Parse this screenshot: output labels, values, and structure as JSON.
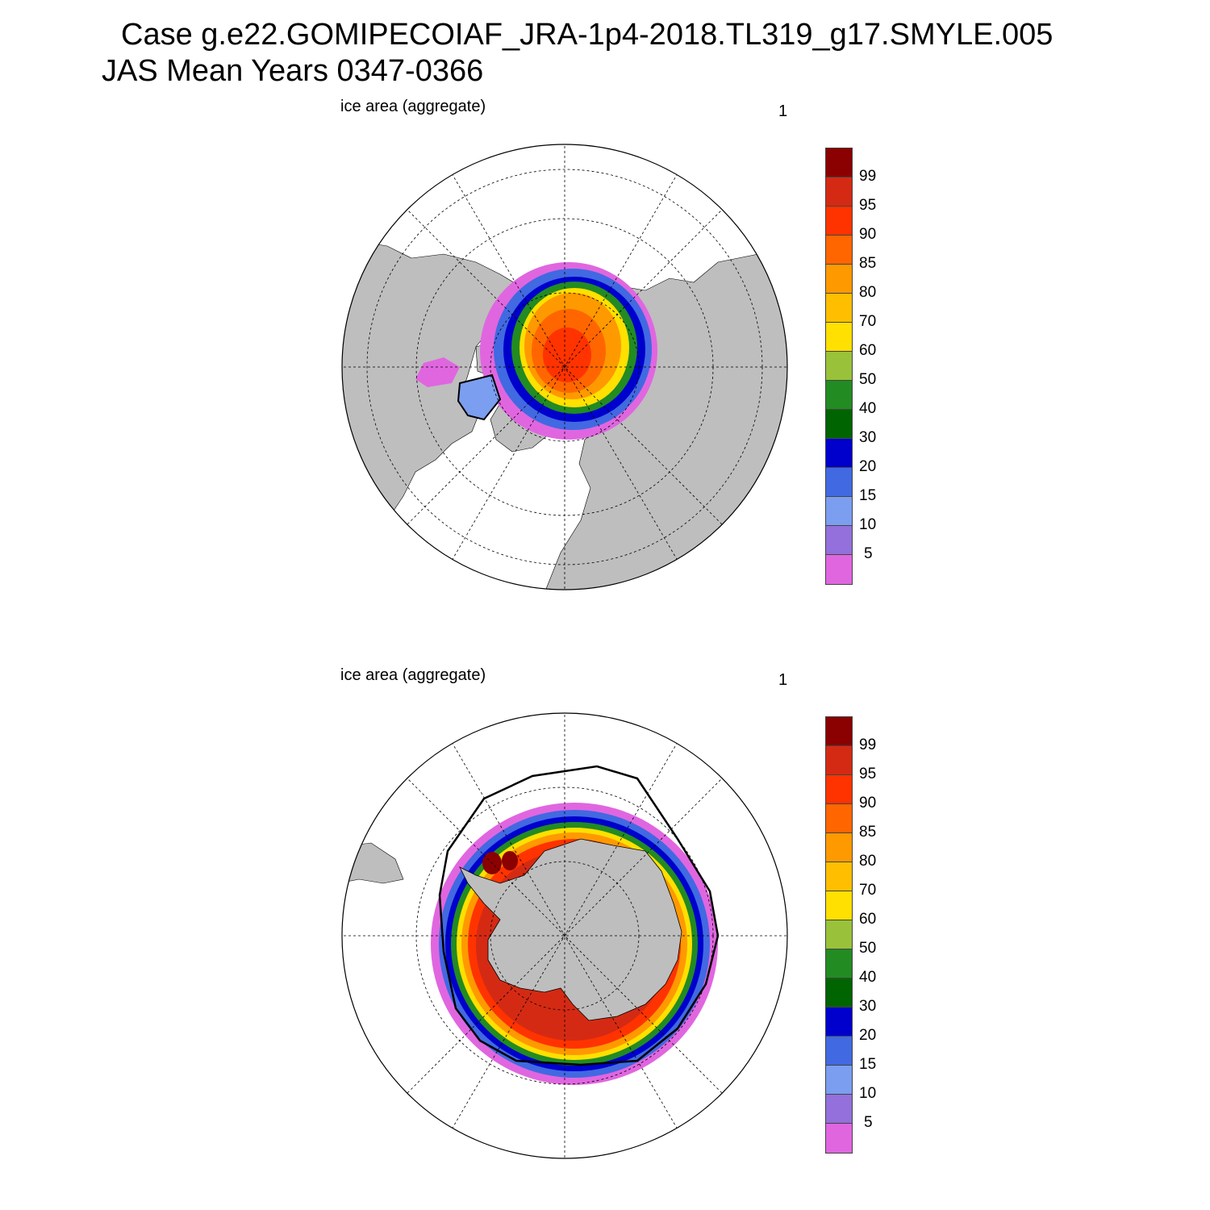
{
  "title_line1": "Case g.e22.GOMIPECOIAF_JRA-1p4-2018.TL319_g17.SMYLE.005",
  "title_line2": "JAS Mean   Years 0347-0366",
  "panels": [
    {
      "label": "ice area  (aggregate)",
      "number": "1",
      "hemisphere": "north"
    },
    {
      "label": "ice area  (aggregate)",
      "number": "1",
      "hemisphere": "south"
    }
  ],
  "colorbar": {
    "labels": [
      "99",
      "95",
      "90",
      "85",
      "80",
      "70",
      "60",
      "50",
      "40",
      "30",
      "20",
      "15",
      "10",
      "5"
    ],
    "colors": [
      "#8b0000",
      "#d42a14",
      "#ff3300",
      "#ff6600",
      "#ff9900",
      "#ffbf00",
      "#ffe000",
      "#99c13a",
      "#228b22",
      "#006400",
      "#0000cd",
      "#4169e1",
      "#7b9ef0",
      "#9370db",
      "#e066e0"
    ]
  },
  "land_color": "#bebebe",
  "ocean_color": "#ffffff"
}
